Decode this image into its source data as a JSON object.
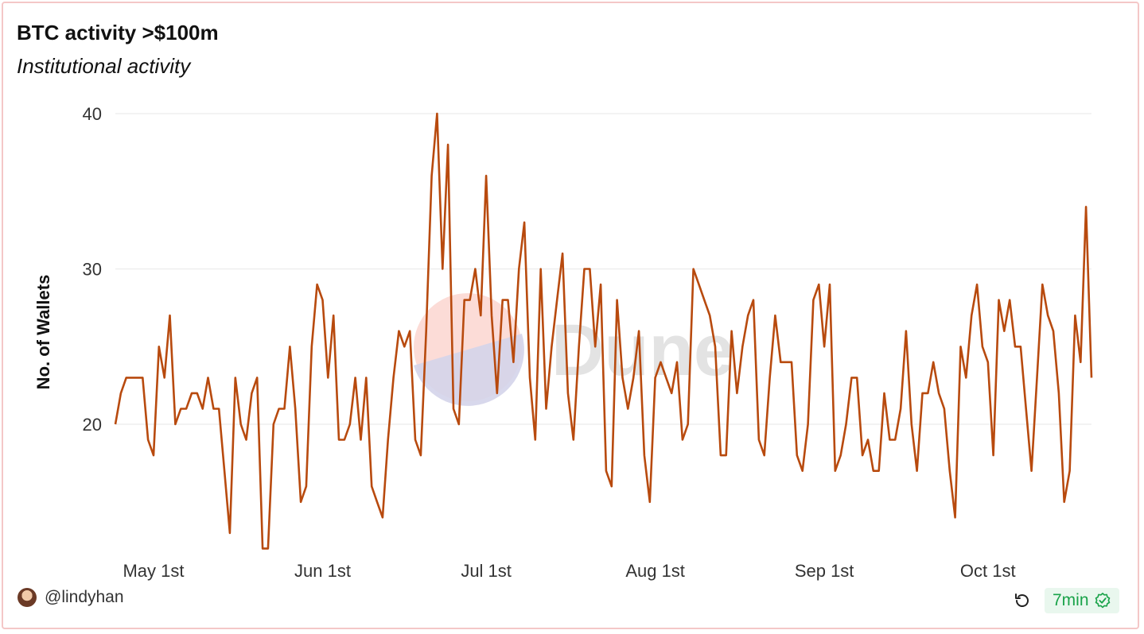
{
  "header": {
    "title": "BTC activity >$100m",
    "subtitle": "Institutional activity"
  },
  "footer": {
    "author": "@lindyhan",
    "refresh_icon": "refresh-icon",
    "freshness": "7min",
    "freshness_icon": "check-badge-icon",
    "freshness_color": "#1aa34a"
  },
  "watermark": "Dune",
  "chart_data": {
    "type": "line",
    "title": "BTC activity >$100m",
    "subtitle": "Institutional activity",
    "ylabel": "No. of Wallets",
    "xlabel": "",
    "ylim": [
      11,
      40
    ],
    "yticks": [
      20,
      30,
      40
    ],
    "xticks": [
      {
        "label": "May 1st",
        "date": "2023-05-01"
      },
      {
        "label": "Jun 1st",
        "date": "2023-06-01"
      },
      {
        "label": "Jul 1st",
        "date": "2023-07-01"
      },
      {
        "label": "Aug 1st",
        "date": "2023-08-01"
      },
      {
        "label": "Sep 1st",
        "date": "2023-09-01"
      },
      {
        "label": "Oct 1st",
        "date": "2023-10-01"
      }
    ],
    "grid": true,
    "line_color": "#b84a0e",
    "x_start": "2023-04-24",
    "x_end": "2023-10-20",
    "series": [
      {
        "values": [
          20,
          22,
          23,
          23,
          23,
          23,
          19,
          18,
          25,
          23,
          27,
          20,
          21,
          21,
          22,
          22,
          21,
          23,
          21,
          21,
          17,
          13,
          23,
          20,
          19,
          22,
          23,
          12,
          12,
          20,
          21,
          21,
          25,
          21,
          15,
          16,
          25,
          29,
          28,
          23,
          27,
          19,
          19,
          20,
          23,
          19,
          23,
          16,
          15,
          14,
          19,
          23,
          26,
          25,
          26,
          19,
          18,
          26,
          36,
          40,
          30,
          38,
          21,
          20,
          28,
          28,
          30,
          27,
          36,
          27,
          22,
          28,
          28,
          24,
          30,
          33,
          23,
          19,
          30,
          21,
          25,
          28,
          31,
          22,
          19,
          25,
          30,
          30,
          25,
          29,
          17,
          16,
          28,
          23,
          21,
          23,
          26,
          18,
          15,
          23,
          24,
          23,
          22,
          24,
          19,
          20,
          30,
          29,
          28,
          27,
          25,
          18,
          18,
          26,
          22,
          25,
          27,
          28,
          19,
          18,
          23,
          27,
          24,
          24,
          24,
          18,
          17,
          20,
          28,
          29,
          25,
          29,
          17,
          18,
          20,
          23,
          23,
          18,
          19,
          17,
          17,
          22,
          19,
          19,
          21,
          26,
          20,
          17,
          22,
          22,
          24,
          22,
          21,
          17,
          14,
          25,
          23,
          27,
          29,
          25,
          24,
          18,
          28,
          26,
          28,
          25,
          25,
          21,
          17,
          23,
          29,
          27,
          26,
          22,
          15,
          17,
          27,
          24,
          34,
          23
        ]
      }
    ]
  }
}
